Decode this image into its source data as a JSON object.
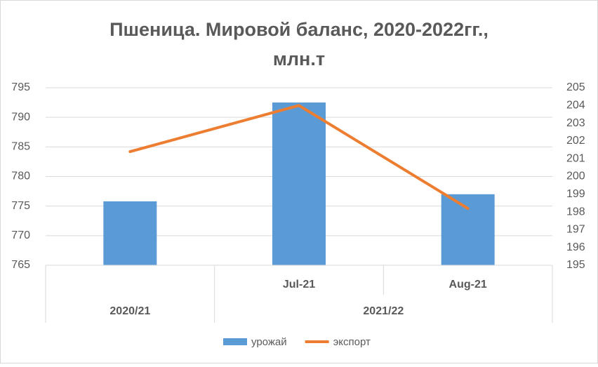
{
  "chart_data": {
    "type": "bar-line",
    "title": [
      "Пшеница. Мировой баланс, 2020-2022гг.,",
      "млн.т"
    ],
    "categories": [
      null,
      "Jul-21",
      "Aug-21"
    ],
    "groups": [
      {
        "name": "2020/21",
        "count": 1
      },
      {
        "name": "2021/22",
        "count": 2
      }
    ],
    "series": [
      {
        "name": "урожай",
        "type": "bar",
        "color": "#5b9bd5",
        "values": [
          775.8,
          792.5,
          777.0
        ]
      },
      {
        "name": "экспорт",
        "type": "line",
        "axis": "y2",
        "color": "#ed7d31",
        "values": [
          201.4,
          204.0,
          198.2
        ]
      }
    ],
    "ylim": [
      765,
      795
    ],
    "yticks": [
      765,
      770,
      775,
      780,
      785,
      790,
      795
    ],
    "y2lim": [
      195,
      205
    ],
    "y2ticks": [
      195,
      196,
      197,
      198,
      199,
      200,
      201,
      202,
      203,
      204,
      205
    ],
    "grid": true,
    "legend": "bottom"
  }
}
